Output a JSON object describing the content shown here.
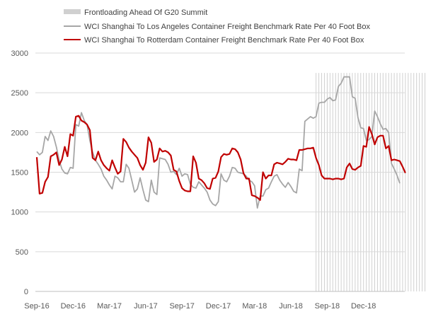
{
  "chart_data": {
    "type": "line",
    "title": "",
    "xlabel": "",
    "ylabel": "",
    "ylim": [
      0,
      3000
    ],
    "yticks": [
      0,
      500,
      1000,
      1500,
      2000,
      2500,
      3000
    ],
    "x_start": "2016-09-01",
    "x_period": "weekly",
    "xtick_labels": [
      "Sep-16",
      "Dec-16",
      "Mar-17",
      "Jun-17",
      "Sep-17",
      "Dec-17",
      "Mar-18",
      "Jun-18",
      "Sep-18",
      "Dec-18"
    ],
    "xtick_weeks": [
      0,
      13,
      26,
      39,
      52,
      65,
      78,
      91,
      104,
      117
    ],
    "grid": true,
    "legend_position": "top-left",
    "shaded_weeks": [
      100,
      101,
      102,
      103,
      104,
      105,
      106,
      107,
      108,
      109,
      110,
      111,
      112,
      113,
      114,
      115,
      116,
      117,
      118,
      119,
      120,
      121,
      122,
      123,
      124,
      125,
      126,
      127,
      128,
      129,
      130,
      131,
      132,
      133,
      134,
      135,
      136,
      137,
      138,
      139,
      140,
      141,
      142
    ],
    "series": [
      {
        "name": "Frontloading Ahead Of G20 Summit",
        "kind": "shade",
        "color": "#bfbfbf"
      },
      {
        "name": "WCI Shanghai To Los Angeles Container Freight Benchmark Rate Per 40 Foot Box",
        "kind": "line",
        "color": "#a6a6a6",
        "values": [
          1760,
          1720,
          1750,
          1950,
          1900,
          2020,
          1950,
          1820,
          1650,
          1540,
          1490,
          1480,
          1560,
          1550,
          2100,
          2080,
          2250,
          2150,
          2100,
          1900,
          1750,
          1650,
          1600,
          1540,
          1450,
          1400,
          1340,
          1290,
          1450,
          1430,
          1380,
          1380,
          1600,
          1550,
          1400,
          1250,
          1290,
          1430,
          1280,
          1150,
          1130,
          1400,
          1250,
          1220,
          1680,
          1670,
          1660,
          1600,
          1500,
          1510,
          1470,
          1550,
          1450,
          1480,
          1470,
          1350,
          1310,
          1300,
          1380,
          1340,
          1300,
          1250,
          1150,
          1100,
          1080,
          1130,
          1480,
          1400,
          1380,
          1450,
          1560,
          1550,
          1500,
          1490,
          1480,
          1450,
          1400,
          1380,
          1330,
          1050,
          1200,
          1200,
          1280,
          1300,
          1380,
          1450,
          1470,
          1400,
          1350,
          1310,
          1370,
          1320,
          1260,
          1240,
          1540,
          1520,
          2140,
          2170,
          2200,
          2180,
          2200,
          2370,
          2380,
          2380,
          2420,
          2440,
          2400,
          2410,
          2580,
          2620,
          2700,
          2700,
          2700,
          2450,
          2430,
          2190,
          2060,
          2050,
          1900,
          1910,
          1950,
          2270,
          2200,
          2110,
          2040,
          2050,
          2000,
          1610,
          1540,
          1460,
          1360
        ]
      },
      {
        "name": "WCI Shanghai To Rotterdam Container Freight Benchmark Rate Per 40 Foot Box",
        "kind": "line",
        "color": "#c00000",
        "values": [
          1690,
          1230,
          1240,
          1380,
          1440,
          1700,
          1720,
          1750,
          1590,
          1660,
          1820,
          1700,
          1980,
          1960,
          2200,
          2210,
          2150,
          2130,
          2100,
          2030,
          1680,
          1650,
          1760,
          1650,
          1590,
          1550,
          1520,
          1650,
          1560,
          1480,
          1510,
          1920,
          1880,
          1810,
          1760,
          1720,
          1680,
          1590,
          1530,
          1620,
          1940,
          1870,
          1630,
          1660,
          1800,
          1760,
          1770,
          1750,
          1710,
          1530,
          1510,
          1390,
          1300,
          1270,
          1260,
          1260,
          1700,
          1620,
          1420,
          1400,
          1360,
          1300,
          1290,
          1420,
          1430,
          1510,
          1690,
          1730,
          1720,
          1730,
          1800,
          1790,
          1750,
          1660,
          1490,
          1420,
          1420,
          1210,
          1200,
          1180,
          1150,
          1500,
          1420,
          1460,
          1460,
          1600,
          1620,
          1610,
          1600,
          1630,
          1670,
          1660,
          1660,
          1650,
          1780,
          1780,
          1790,
          1800,
          1800,
          1810,
          1680,
          1590,
          1460,
          1420,
          1420,
          1420,
          1410,
          1420,
          1420,
          1410,
          1420,
          1560,
          1610,
          1540,
          1530,
          1560,
          1580,
          1830,
          1820,
          2070,
          1980,
          1850,
          1940,
          1960,
          1960,
          1800,
          1830,
          1650,
          1660,
          1650,
          1640,
          1570,
          1490
        ]
      }
    ]
  }
}
